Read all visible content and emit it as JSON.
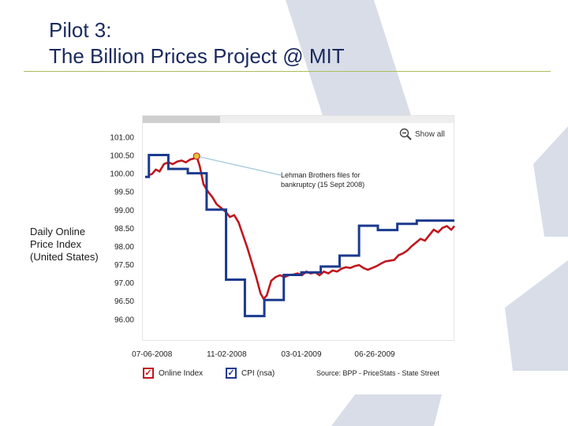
{
  "slide": {
    "title_line1": "Pilot 3:",
    "title_line2": "The Billion Prices Project @ MIT",
    "side_label": "Daily Online Price Index (United States)",
    "show_all_label": "Show all",
    "annotation": "Lehman Brothers files for bankruptcy (15 Sept 2008)",
    "source": "Source: BPP - PriceStats - State Street",
    "legend": {
      "online_index": "Online Index",
      "cpi": "CPI (nsa)",
      "check_glyph": "✓"
    },
    "colors": {
      "title": "#1a2a5e",
      "rule": "#a9bf5a",
      "online_index": "#c0161d",
      "cpi": "#1b3a8f",
      "marker": "#e8c23a",
      "callout": "#9ec7de",
      "decoration": "#d8dde8"
    }
  },
  "chart_data": {
    "type": "line",
    "ylim": [
      95.4,
      101.4
    ],
    "y_ticks": [
      "101.00",
      "100.50",
      "100.00",
      "99.50",
      "99.00",
      "98.50",
      "98.00",
      "97.50",
      "97.00",
      "96.50",
      "96.00"
    ],
    "y_tick_values": [
      101.0,
      100.5,
      100.0,
      99.5,
      99.0,
      98.5,
      98.0,
      97.5,
      97.0,
      96.5,
      96.0
    ],
    "x_ticks": [
      "07-06-2008",
      "11-02-2008",
      "03-01-2009",
      "06-26-2009"
    ],
    "x_tick_dates": [
      "2008-07-06",
      "2008-11-02",
      "2009-03-01",
      "2009-06-26"
    ],
    "xlim": [
      "2008-06-20",
      "2009-10-31"
    ],
    "grid": false,
    "legend_position": "bottom",
    "annotation": {
      "date": "2008-09-15",
      "value": 100.47,
      "text": "Lehman Brothers files for bankruptcy (15 Sept 2008)"
    },
    "series": [
      {
        "name": "Online Index",
        "color": "#c0161d",
        "points": [
          [
            "2008-07-01",
            99.95
          ],
          [
            "2008-07-06",
            99.98
          ],
          [
            "2008-07-12",
            100.1
          ],
          [
            "2008-07-18",
            100.05
          ],
          [
            "2008-07-25",
            100.25
          ],
          [
            "2008-08-01",
            100.3
          ],
          [
            "2008-08-08",
            100.25
          ],
          [
            "2008-08-15",
            100.32
          ],
          [
            "2008-08-22",
            100.35
          ],
          [
            "2008-08-29",
            100.3
          ],
          [
            "2008-09-05",
            100.38
          ],
          [
            "2008-09-10",
            100.4
          ],
          [
            "2008-09-15",
            100.47
          ],
          [
            "2008-09-20",
            100.2
          ],
          [
            "2008-09-26",
            99.7
          ],
          [
            "2008-10-03",
            99.5
          ],
          [
            "2008-10-10",
            99.35
          ],
          [
            "2008-10-17",
            99.15
          ],
          [
            "2008-10-24",
            99.05
          ],
          [
            "2008-10-31",
            98.95
          ],
          [
            "2008-11-07",
            98.8
          ],
          [
            "2008-11-14",
            98.85
          ],
          [
            "2008-11-21",
            98.65
          ],
          [
            "2008-11-28",
            98.3
          ],
          [
            "2008-12-05",
            97.95
          ],
          [
            "2008-12-12",
            97.55
          ],
          [
            "2008-12-19",
            97.15
          ],
          [
            "2008-12-26",
            96.7
          ],
          [
            "2008-12-31",
            96.55
          ],
          [
            "2009-01-05",
            96.65
          ],
          [
            "2009-01-12",
            97.05
          ],
          [
            "2009-01-19",
            97.15
          ],
          [
            "2009-01-26",
            97.2
          ],
          [
            "2009-02-02",
            97.15
          ],
          [
            "2009-02-09",
            97.2
          ],
          [
            "2009-02-16",
            97.22
          ],
          [
            "2009-02-23",
            97.25
          ],
          [
            "2009-03-02",
            97.2
          ],
          [
            "2009-03-09",
            97.3
          ],
          [
            "2009-03-16",
            97.25
          ],
          [
            "2009-03-23",
            97.28
          ],
          [
            "2009-03-30",
            97.2
          ],
          [
            "2009-04-06",
            97.3
          ],
          [
            "2009-04-13",
            97.25
          ],
          [
            "2009-04-20",
            97.33
          ],
          [
            "2009-04-27",
            97.3
          ],
          [
            "2009-05-04",
            97.38
          ],
          [
            "2009-05-11",
            97.42
          ],
          [
            "2009-05-18",
            97.4
          ],
          [
            "2009-05-25",
            97.45
          ],
          [
            "2009-06-01",
            97.48
          ],
          [
            "2009-06-08",
            97.4
          ],
          [
            "2009-06-15",
            97.35
          ],
          [
            "2009-06-22",
            97.4
          ],
          [
            "2009-06-29",
            97.45
          ],
          [
            "2009-07-06",
            97.52
          ],
          [
            "2009-07-13",
            97.58
          ],
          [
            "2009-07-20",
            97.6
          ],
          [
            "2009-07-27",
            97.62
          ],
          [
            "2009-08-03",
            97.75
          ],
          [
            "2009-08-10",
            97.8
          ],
          [
            "2009-08-17",
            97.88
          ],
          [
            "2009-08-24",
            98.0
          ],
          [
            "2009-08-31",
            98.1
          ],
          [
            "2009-09-07",
            98.2
          ],
          [
            "2009-09-14",
            98.15
          ],
          [
            "2009-09-21",
            98.3
          ],
          [
            "2009-09-28",
            98.45
          ],
          [
            "2009-10-05",
            98.38
          ],
          [
            "2009-10-12",
            98.5
          ],
          [
            "2009-10-19",
            98.55
          ],
          [
            "2009-10-26",
            98.45
          ],
          [
            "2009-10-31",
            98.55
          ]
        ]
      },
      {
        "name": "CPI (nsa)",
        "color": "#1b3a8f",
        "type": "step",
        "points": [
          [
            "2008-06-25",
            99.9
          ],
          [
            "2008-07-01",
            100.5
          ],
          [
            "2008-08-01",
            100.12
          ],
          [
            "2008-09-01",
            100.0
          ],
          [
            "2008-10-01",
            99.0
          ],
          [
            "2008-11-01",
            97.08
          ],
          [
            "2008-12-01",
            96.08
          ],
          [
            "2009-01-01",
            96.52
          ],
          [
            "2009-02-01",
            97.21
          ],
          [
            "2009-03-01",
            97.28
          ],
          [
            "2009-04-01",
            97.44
          ],
          [
            "2009-05-01",
            97.74
          ],
          [
            "2009-06-01",
            98.56
          ],
          [
            "2009-07-01",
            98.44
          ],
          [
            "2009-08-01",
            98.61
          ],
          [
            "2009-09-01",
            98.7
          ],
          [
            "2009-10-31",
            98.7
          ]
        ]
      }
    ]
  }
}
